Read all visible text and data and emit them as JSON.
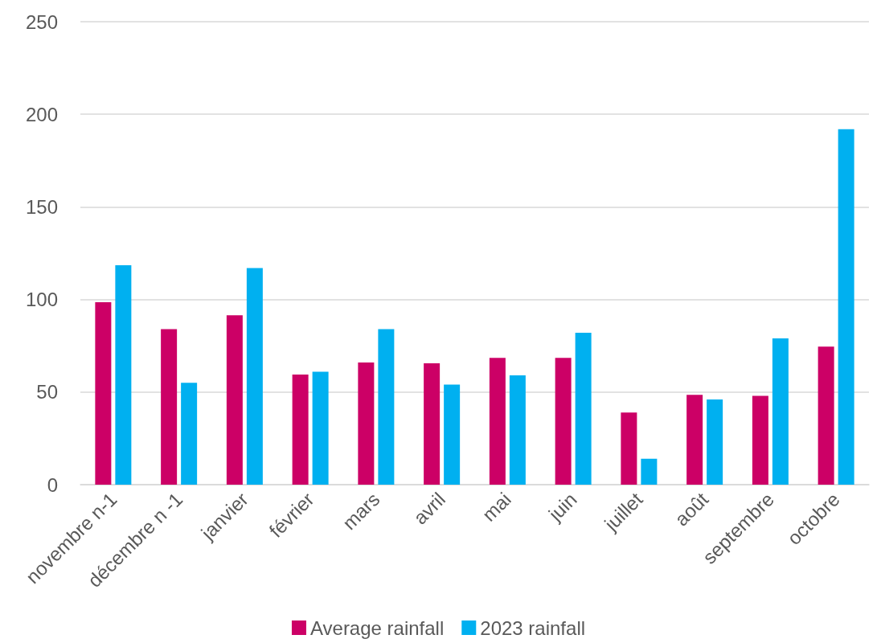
{
  "chart_data": {
    "type": "bar",
    "categories": [
      "novembre n-1",
      "décembre n -1",
      "janvier",
      "février",
      "mars",
      "avril",
      "mai",
      "juin",
      "juillet",
      "août",
      "septembre",
      "octobre"
    ],
    "series": [
      {
        "name": "Average rainfall",
        "color": "#cc0066",
        "values": [
          98.5,
          84,
          91.5,
          59.5,
          66,
          65.5,
          68.5,
          68.5,
          39,
          48.5,
          48,
          74.5
        ]
      },
      {
        "name": "2023 rainfall",
        "color": "#00b0f0",
        "values": [
          118.5,
          55,
          117,
          61,
          84,
          54,
          59,
          82,
          14,
          46,
          79,
          192
        ]
      }
    ],
    "ylim": [
      0,
      250
    ],
    "yticks": [
      0,
      50,
      100,
      150,
      200,
      250
    ],
    "grid": "y",
    "legend": "bottom"
  }
}
